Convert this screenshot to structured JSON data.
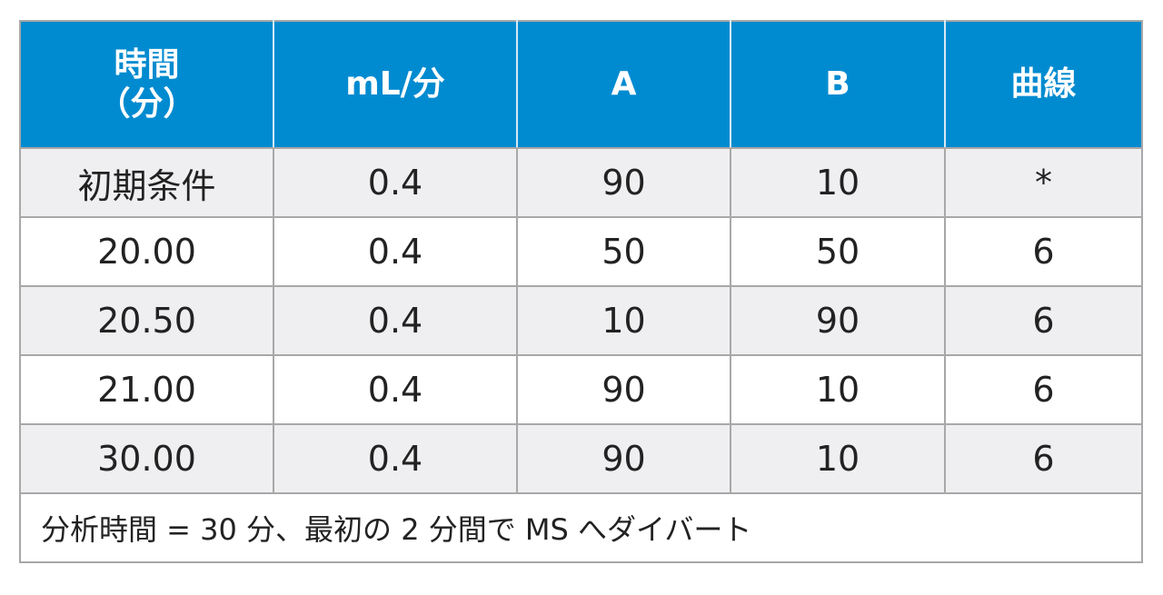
{
  "table": {
    "headers": [
      {
        "lines": [
          "時間",
          "（分）"
        ]
      },
      {
        "lines": [
          "mL/分"
        ]
      },
      {
        "lines": [
          "A"
        ]
      },
      {
        "lines": [
          "B"
        ]
      },
      {
        "lines": [
          "曲線"
        ]
      }
    ],
    "rows": [
      [
        "初期条件",
        "0.4",
        "90",
        "10",
        "*"
      ],
      [
        "20.00",
        "0.4",
        "50",
        "50",
        "6"
      ],
      [
        "20.50",
        "0.4",
        "10",
        "90",
        "6"
      ],
      [
        "21.00",
        "0.4",
        "90",
        "10",
        "6"
      ],
      [
        "30.00",
        "0.4",
        "90",
        "10",
        "6"
      ]
    ],
    "footnote": "分析時間 = 30 分、最初の 2 分間で MS へダイバート"
  },
  "colors": {
    "header_bg": "#008bd0",
    "header_text": "#ffffff",
    "row_shaded": "#efeff1",
    "row_plain": "#ffffff",
    "border": "#a8a8a8"
  }
}
